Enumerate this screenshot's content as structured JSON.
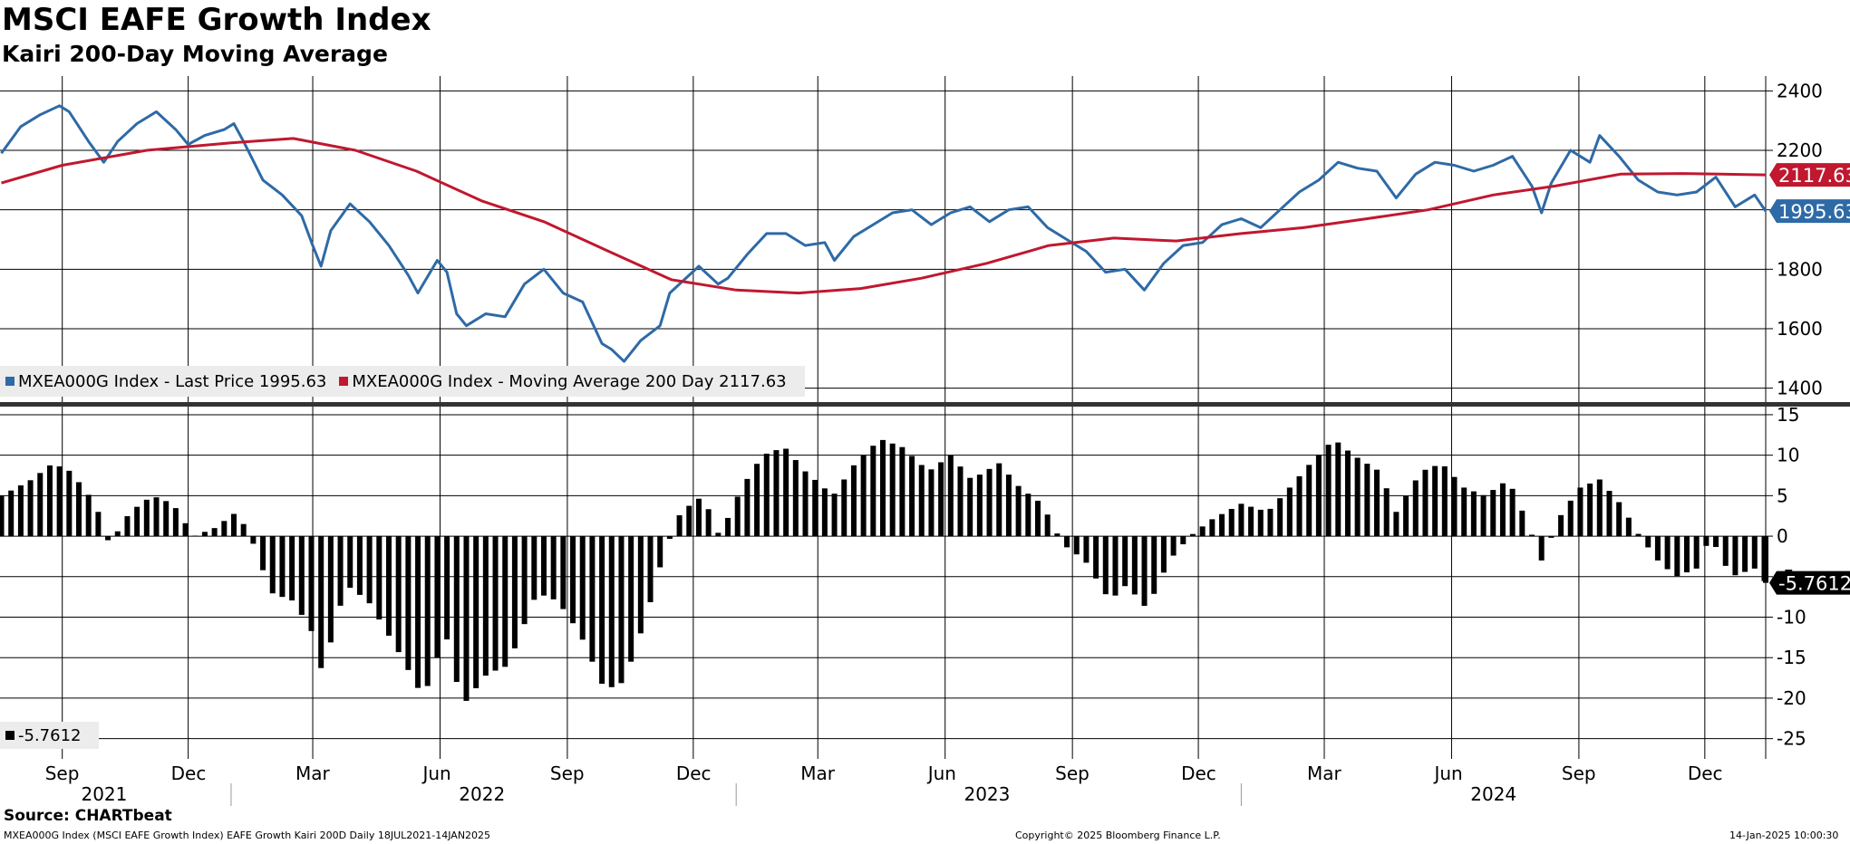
{
  "header": {
    "title": "MSCI EAFE Growth Index",
    "subtitle": "Kairi 200-Day Moving Average"
  },
  "colors": {
    "price": "#2e6aa6",
    "ma": "#c0182f",
    "kairi": "#000000",
    "grid": "#000000"
  },
  "chart_data": [
    {
      "type": "line",
      "title": "",
      "x_start": "2021-07-18",
      "x_end": "2025-01-14",
      "ylim": [
        1350,
        2450
      ],
      "yticks": [
        1400,
        1600,
        1800,
        2000,
        2200,
        2400
      ],
      "grid": true,
      "series": [
        {
          "name": "MXEA000G Index - Last Price",
          "color": "#2e6aa6",
          "points": [
            [
              "2021-07-19",
              2190
            ],
            [
              "2021-08-02",
              2280
            ],
            [
              "2021-08-16",
              2320
            ],
            [
              "2021-08-30",
              2350
            ],
            [
              "2021-09-06",
              2330
            ],
            [
              "2021-09-20",
              2230
            ],
            [
              "2021-10-01",
              2160
            ],
            [
              "2021-10-11",
              2230
            ],
            [
              "2021-10-25",
              2290
            ],
            [
              "2021-11-08",
              2330
            ],
            [
              "2021-11-22",
              2270
            ],
            [
              "2021-12-01",
              2220
            ],
            [
              "2021-12-13",
              2250
            ],
            [
              "2021-12-27",
              2270
            ],
            [
              "2022-01-03",
              2290
            ],
            [
              "2022-01-10",
              2230
            ],
            [
              "2022-01-24",
              2100
            ],
            [
              "2022-02-07",
              2050
            ],
            [
              "2022-02-21",
              1980
            ],
            [
              "2022-03-01",
              1880
            ],
            [
              "2022-03-07",
              1810
            ],
            [
              "2022-03-14",
              1930
            ],
            [
              "2022-03-28",
              2020
            ],
            [
              "2022-04-11",
              1960
            ],
            [
              "2022-04-25",
              1880
            ],
            [
              "2022-05-09",
              1780
            ],
            [
              "2022-05-16",
              1720
            ],
            [
              "2022-05-30",
              1830
            ],
            [
              "2022-06-06",
              1790
            ],
            [
              "2022-06-13",
              1650
            ],
            [
              "2022-06-20",
              1610
            ],
            [
              "2022-07-04",
              1650
            ],
            [
              "2022-07-18",
              1640
            ],
            [
              "2022-08-01",
              1750
            ],
            [
              "2022-08-15",
              1800
            ],
            [
              "2022-08-29",
              1720
            ],
            [
              "2022-09-12",
              1690
            ],
            [
              "2022-09-26",
              1550
            ],
            [
              "2022-10-03",
              1530
            ],
            [
              "2022-10-12",
              1490
            ],
            [
              "2022-10-24",
              1560
            ],
            [
              "2022-11-07",
              1610
            ],
            [
              "2022-11-14",
              1720
            ],
            [
              "2022-11-28",
              1780
            ],
            [
              "2022-12-05",
              1810
            ],
            [
              "2022-12-19",
              1750
            ],
            [
              "2022-12-26",
              1770
            ],
            [
              "2023-01-09",
              1850
            ],
            [
              "2023-01-23",
              1920
            ],
            [
              "2023-02-06",
              1920
            ],
            [
              "2023-02-20",
              1880
            ],
            [
              "2023-03-06",
              1890
            ],
            [
              "2023-03-13",
              1830
            ],
            [
              "2023-03-27",
              1910
            ],
            [
              "2023-04-10",
              1950
            ],
            [
              "2023-04-24",
              1990
            ],
            [
              "2023-05-08",
              2000
            ],
            [
              "2023-05-22",
              1950
            ],
            [
              "2023-06-05",
              1990
            ],
            [
              "2023-06-19",
              2010
            ],
            [
              "2023-07-03",
              1960
            ],
            [
              "2023-07-17",
              2000
            ],
            [
              "2023-07-31",
              2010
            ],
            [
              "2023-08-14",
              1940
            ],
            [
              "2023-08-28",
              1900
            ],
            [
              "2023-09-11",
              1860
            ],
            [
              "2023-09-25",
              1790
            ],
            [
              "2023-10-09",
              1800
            ],
            [
              "2023-10-23",
              1730
            ],
            [
              "2023-11-06",
              1820
            ],
            [
              "2023-11-20",
              1880
            ],
            [
              "2023-12-04",
              1890
            ],
            [
              "2023-12-18",
              1950
            ],
            [
              "2024-01-01",
              1970
            ],
            [
              "2024-01-15",
              1940
            ],
            [
              "2024-01-29",
              2000
            ],
            [
              "2024-02-12",
              2060
            ],
            [
              "2024-02-26",
              2100
            ],
            [
              "2024-03-11",
              2160
            ],
            [
              "2024-03-25",
              2140
            ],
            [
              "2024-04-08",
              2130
            ],
            [
              "2024-04-22",
              2040
            ],
            [
              "2024-05-06",
              2120
            ],
            [
              "2024-05-20",
              2160
            ],
            [
              "2024-06-03",
              2150
            ],
            [
              "2024-06-17",
              2130
            ],
            [
              "2024-07-01",
              2150
            ],
            [
              "2024-07-15",
              2180
            ],
            [
              "2024-07-29",
              2080
            ],
            [
              "2024-08-05",
              1990
            ],
            [
              "2024-08-12",
              2090
            ],
            [
              "2024-08-26",
              2200
            ],
            [
              "2024-09-09",
              2160
            ],
            [
              "2024-09-16",
              2250
            ],
            [
              "2024-09-30",
              2180
            ],
            [
              "2024-10-14",
              2100
            ],
            [
              "2024-10-28",
              2060
            ],
            [
              "2024-11-11",
              2050
            ],
            [
              "2024-11-25",
              2060
            ],
            [
              "2024-12-09",
              2110
            ],
            [
              "2024-12-23",
              2010
            ],
            [
              "2025-01-06",
              2050
            ],
            [
              "2025-01-14",
              1995.63
            ]
          ]
        },
        {
          "name": "MXEA000G Index - Moving Average 200 Day",
          "color": "#c0182f",
          "points": [
            [
              "2021-07-19",
              2090
            ],
            [
              "2021-09-01",
              2150
            ],
            [
              "2021-11-01",
              2200
            ],
            [
              "2022-01-01",
              2225
            ],
            [
              "2022-02-15",
              2240
            ],
            [
              "2022-04-01",
              2200
            ],
            [
              "2022-05-15",
              2130
            ],
            [
              "2022-07-01",
              2030
            ],
            [
              "2022-08-15",
              1960
            ],
            [
              "2022-10-01",
              1860
            ],
            [
              "2022-11-15",
              1765
            ],
            [
              "2023-01-01",
              1730
            ],
            [
              "2023-02-15",
              1720
            ],
            [
              "2023-04-01",
              1735
            ],
            [
              "2023-05-15",
              1770
            ],
            [
              "2023-07-01",
              1820
            ],
            [
              "2023-08-15",
              1880
            ],
            [
              "2023-10-01",
              1905
            ],
            [
              "2023-11-15",
              1895
            ],
            [
              "2024-01-01",
              1920
            ],
            [
              "2024-02-15",
              1940
            ],
            [
              "2024-04-01",
              1970
            ],
            [
              "2024-05-15",
              2000
            ],
            [
              "2024-07-01",
              2050
            ],
            [
              "2024-08-15",
              2080
            ],
            [
              "2024-10-01",
              2120
            ],
            [
              "2024-11-15",
              2122
            ],
            [
              "2025-01-14",
              2117.63
            ]
          ]
        }
      ],
      "last_labels": [
        {
          "value": "2117.63",
          "series": 1
        },
        {
          "value": "1995.63",
          "series": 0
        }
      ],
      "legend": {
        "placement": "bottom-left",
        "items": [
          {
            "label": "MXEA000G Index - Last Price 1995.63",
            "color": "#2e6aa6"
          },
          {
            "label": "MXEA000G Index - Moving Average 200 Day 2117.63",
            "color": "#c0182f"
          }
        ]
      }
    },
    {
      "type": "bar",
      "title": "",
      "ylim": [
        -27.5,
        16
      ],
      "yticks": [
        15,
        10,
        5,
        0,
        -5,
        -10,
        -15,
        -20,
        -25
      ],
      "ytick_labels": [
        "15",
        "10",
        "5",
        "0",
        "-5",
        "-10",
        "-15",
        "-20",
        "-25"
      ],
      "grid": true,
      "series": [
        {
          "name": "",
          "color": "#000000",
          "points": [
            [
              "2021-07-19",
              5
            ],
            [
              "2021-08-10",
              7
            ],
            [
              "2021-08-25",
              9
            ],
            [
              "2021-09-07",
              8
            ],
            [
              "2021-09-25",
              4
            ],
            [
              "2021-10-05",
              -1
            ],
            [
              "2021-10-20",
              3
            ],
            [
              "2021-11-05",
              5
            ],
            [
              "2021-11-20",
              4
            ],
            [
              "2021-12-05",
              0
            ],
            [
              "2021-12-20",
              1
            ],
            [
              "2022-01-05",
              3
            ],
            [
              "2022-01-15",
              0
            ],
            [
              "2022-01-30",
              -7
            ],
            [
              "2022-02-15",
              -8
            ],
            [
              "2022-03-01",
              -12
            ],
            [
              "2022-03-08",
              -17
            ],
            [
              "2022-03-25",
              -6
            ],
            [
              "2022-04-10",
              -8
            ],
            [
              "2022-05-01",
              -14
            ],
            [
              "2022-05-20",
              -20
            ],
            [
              "2022-06-05",
              -12
            ],
            [
              "2022-06-17",
              -21
            ],
            [
              "2022-07-05",
              -17
            ],
            [
              "2022-07-20",
              -16
            ],
            [
              "2022-08-10",
              -7
            ],
            [
              "2022-08-25",
              -8
            ],
            [
              "2022-09-10",
              -12
            ],
            [
              "2022-09-28",
              -19
            ],
            [
              "2022-10-12",
              -18
            ],
            [
              "2022-10-28",
              -10
            ],
            [
              "2022-11-10",
              -2
            ],
            [
              "2022-11-22",
              3
            ],
            [
              "2022-12-08",
              5
            ],
            [
              "2022-12-20",
              0
            ],
            [
              "2023-01-05",
              6
            ],
            [
              "2023-01-20",
              10
            ],
            [
              "2023-02-05",
              11
            ],
            [
              "2023-02-20",
              8
            ],
            [
              "2023-03-12",
              5
            ],
            [
              "2023-03-28",
              9
            ],
            [
              "2023-04-15",
              12
            ],
            [
              "2023-05-01",
              11
            ],
            [
              "2023-05-20",
              8
            ],
            [
              "2023-06-05",
              10
            ],
            [
              "2023-06-20",
              7
            ],
            [
              "2023-07-10",
              9
            ],
            [
              "2023-07-25",
              6
            ],
            [
              "2023-08-10",
              4
            ],
            [
              "2023-08-25",
              -1
            ],
            [
              "2023-09-10",
              -3
            ],
            [
              "2023-09-28",
              -8
            ],
            [
              "2023-10-10",
              -6
            ],
            [
              "2023-10-25",
              -9
            ],
            [
              "2023-11-10",
              -3
            ],
            [
              "2023-11-25",
              0
            ],
            [
              "2023-12-10",
              2
            ],
            [
              "2024-01-01",
              4
            ],
            [
              "2024-01-20",
              3
            ],
            [
              "2024-02-05",
              6
            ],
            [
              "2024-02-20",
              9
            ],
            [
              "2024-03-08",
              12
            ],
            [
              "2024-03-22",
              10
            ],
            [
              "2024-04-10",
              8
            ],
            [
              "2024-04-22",
              3
            ],
            [
              "2024-05-10",
              8
            ],
            [
              "2024-05-25",
              9
            ],
            [
              "2024-06-10",
              6
            ],
            [
              "2024-06-25",
              5
            ],
            [
              "2024-07-12",
              7
            ],
            [
              "2024-07-25",
              2
            ],
            [
              "2024-08-05",
              -3
            ],
            [
              "2024-08-20",
              3
            ],
            [
              "2024-09-02",
              6
            ],
            [
              "2024-09-16",
              7
            ],
            [
              "2024-10-01",
              4
            ],
            [
              "2024-10-15",
              0
            ],
            [
              "2024-10-28",
              -3
            ],
            [
              "2024-11-10",
              -5
            ],
            [
              "2024-11-25",
              -4
            ],
            [
              "2024-12-05",
              0
            ],
            [
              "2024-12-20",
              -5
            ],
            [
              "2025-01-06",
              -4
            ],
            [
              "2025-01-14",
              -5.7612
            ]
          ]
        }
      ],
      "last_label": {
        "value": "-5.7612"
      },
      "legend": {
        "placement": "bottom-left",
        "items": [
          {
            "label": "-5.7612",
            "color": "#000000"
          }
        ]
      }
    }
  ],
  "x_axis": {
    "months": [
      {
        "label": "Sep",
        "date": "2021-09-01"
      },
      {
        "label": "Dec",
        "date": "2021-12-01"
      },
      {
        "label": "Mar",
        "date": "2022-03-01"
      },
      {
        "label": "Jun",
        "date": "2022-06-01"
      },
      {
        "label": "Sep",
        "date": "2022-09-01"
      },
      {
        "label": "Dec",
        "date": "2022-12-01"
      },
      {
        "label": "Mar",
        "date": "2023-03-01"
      },
      {
        "label": "Jun",
        "date": "2023-06-01"
      },
      {
        "label": "Sep",
        "date": "2023-09-01"
      },
      {
        "label": "Dec",
        "date": "2023-12-01"
      },
      {
        "label": "Mar",
        "date": "2024-03-01"
      },
      {
        "label": "Jun",
        "date": "2024-06-01"
      },
      {
        "label": "Sep",
        "date": "2024-09-01"
      },
      {
        "label": "Dec",
        "date": "2024-12-01"
      }
    ],
    "years": [
      {
        "label": "2021",
        "date": "2021-10-01"
      },
      {
        "label": "2022",
        "date": "2022-07-01"
      },
      {
        "label": "2023",
        "date": "2023-07-01"
      },
      {
        "label": "2024",
        "date": "2024-07-01"
      }
    ],
    "year_separators": [
      "2022-01-01",
      "2023-01-01",
      "2024-01-01"
    ]
  },
  "footer": {
    "source": "Source: CHARTbeat",
    "description": "MXEA000G Index (MSCI EAFE Growth Index) EAFE Growth Kairi 200D  Daily 18JUL2021-14JAN2025",
    "copyright": "Copyright© 2025 Bloomberg Finance L.P.",
    "timestamp": "14-Jan-2025 10:00:30"
  }
}
